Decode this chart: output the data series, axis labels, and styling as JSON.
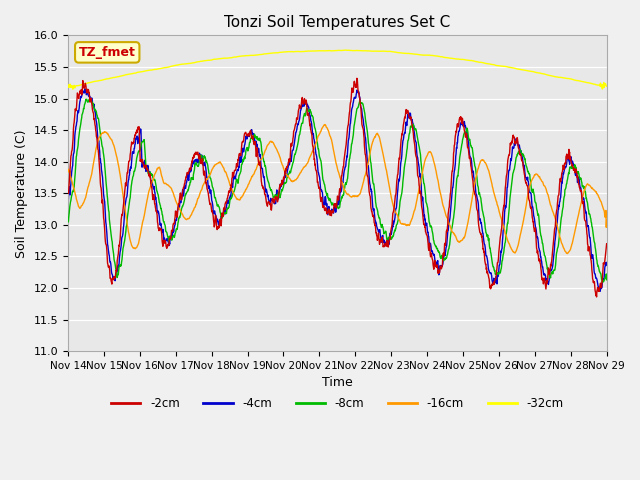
{
  "title": "Tonzi Soil Temperatures Set C",
  "xlabel": "Time",
  "ylabel": "Soil Temperature (C)",
  "ylim": [
    11.0,
    16.0
  ],
  "yticks": [
    11.0,
    11.5,
    12.0,
    12.5,
    13.0,
    13.5,
    14.0,
    14.5,
    15.0,
    15.5,
    16.0
  ],
  "xtick_labels": [
    "Nov 14",
    "Nov 15",
    "Nov 16",
    "Nov 17",
    "Nov 18",
    "Nov 19",
    "Nov 20",
    "Nov 21",
    "Nov 22",
    "Nov 23",
    "Nov 24",
    "Nov 25",
    "Nov 26",
    "Nov 27",
    "Nov 28",
    "Nov 29"
  ],
  "colors": {
    "2cm": "#cc0000",
    "4cm": "#0000cc",
    "8cm": "#00bb00",
    "16cm": "#ff9900",
    "32cm": "#ffff00"
  },
  "annotation_text": "TZ_fmet",
  "annotation_text_color": "#cc0000",
  "annotation_bg_color": "#ffffcc",
  "annotation_edge_color": "#ccaa00",
  "plot_bg_color": "#e8e8e8",
  "fig_bg_color": "#f0f0f0",
  "grid_color": "#ffffff",
  "days": 15
}
